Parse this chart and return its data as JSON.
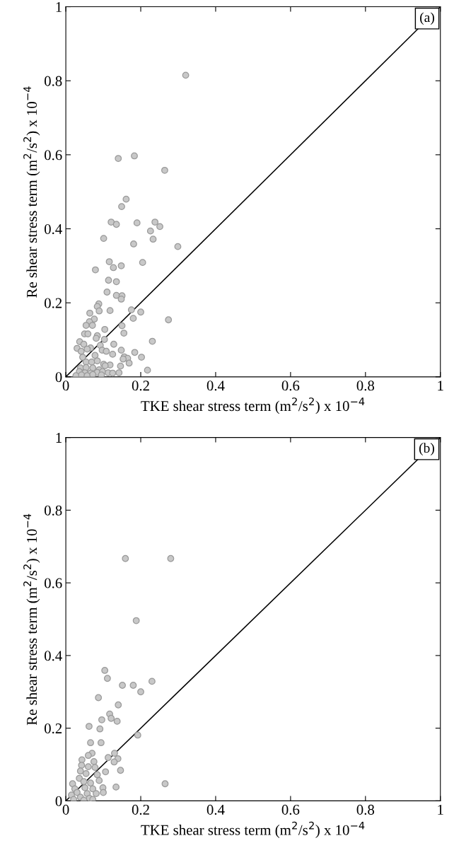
{
  "chart_data": [
    {
      "type": "scatter",
      "xlabel": "TKE shear stress term (m$^{2}$/s$^{2}$) x 10$^{−4}$",
      "ylabel": "Re shear stress term (m$^{2}$/s$^{2}$) x 10$^{−4}$",
      "annotations": [
        "(a)"
      ],
      "xlim": [
        0,
        1
      ],
      "ylim": [
        0,
        1
      ],
      "xticks": [
        0,
        0.2,
        0.4,
        0.6,
        0.8,
        1
      ],
      "yticks": [
        0,
        0.2,
        0.4,
        0.6,
        0.8,
        1
      ],
      "grid": false,
      "series": [
        {
          "marker": "circle",
          "color": "#c8c8c8",
          "x": [
            0.32,
            0.14,
            0.183,
            0.264,
            0.161,
            0.149,
            0.121,
            0.135,
            0.19,
            0.238,
            0.251,
            0.226,
            0.101,
            0.233,
            0.181,
            0.299,
            0.116,
            0.079,
            0.127,
            0.148,
            0.205,
            0.114,
            0.135,
            0.11,
            0.135,
            0.15,
            0.148,
            0.088,
            0.084,
            0.089,
            0.118,
            0.175,
            0.2,
            0.18,
            0.274,
            0.064,
            0.076,
            0.063,
            0.054,
            0.071,
            0.104,
            0.15,
            0.155,
            0.05,
            0.059,
            0.084,
            0.081,
            0.103,
            0.231,
            0.037,
            0.03,
            0.048,
            0.066,
            0.092,
            0.128,
            0.041,
            0.057,
            0.097,
            0.108,
            0.148,
            0.184,
            0.125,
            0.078,
            0.045,
            0.156,
            0.165,
            0.202,
            0.153,
            0.169,
            0.054,
            0.069,
            0.084,
            0.101,
            0.118,
            0.146,
            0.039,
            0.054,
            0.072,
            0.089,
            0.105,
            0.218,
            0.036,
            0.051,
            0.066,
            0.084,
            0.098,
            0.113,
            0.125,
            0.142,
            0.027,
            0.042,
            0.057,
            0.095,
            0.072
          ],
          "values": [
            0.815,
            0.59,
            0.597,
            0.558,
            0.48,
            0.46,
            0.418,
            0.412,
            0.416,
            0.418,
            0.406,
            0.394,
            0.374,
            0.372,
            0.359,
            0.352,
            0.311,
            0.289,
            0.295,
            0.3,
            0.309,
            0.261,
            0.257,
            0.229,
            0.22,
            0.219,
            0.21,
            0.197,
            0.19,
            0.178,
            0.179,
            0.181,
            0.175,
            0.158,
            0.154,
            0.172,
            0.156,
            0.149,
            0.139,
            0.139,
            0.128,
            0.138,
            0.118,
            0.116,
            0.116,
            0.111,
            0.104,
            0.101,
            0.096,
            0.095,
            0.077,
            0.088,
            0.078,
            0.085,
            0.088,
            0.069,
            0.075,
            0.072,
            0.069,
            0.072,
            0.066,
            0.061,
            0.058,
            0.053,
            0.054,
            0.05,
            0.053,
            0.048,
            0.037,
            0.04,
            0.04,
            0.043,
            0.034,
            0.032,
            0.029,
            0.024,
            0.025,
            0.024,
            0.019,
            0.03,
            0.018,
            0.014,
            0.011,
            0.01,
            0.012,
            0.014,
            0.011,
            0.01,
            0.011,
            0.003,
            0.005,
            0.003,
            0.005,
            0.006
          ]
        },
        {
          "type": "line",
          "color": "#000000",
          "x": [
            0,
            1
          ],
          "values": [
            0,
            1
          ]
        }
      ]
    },
    {
      "type": "scatter",
      "xlabel": "TKE shear stress term (m$^{2}$/s$^{2}$) x 10$^{−4}$",
      "ylabel": "Re shear stress term (m$^{2}$/s$^{2}$) x 10$^{−4}$",
      "annotations": [
        "(b)"
      ],
      "xlim": [
        0,
        1
      ],
      "ylim": [
        0,
        1
      ],
      "xticks": [
        0,
        0.2,
        0.4,
        0.6,
        0.8,
        1
      ],
      "yticks": [
        0,
        0.2,
        0.4,
        0.6,
        0.8,
        1
      ],
      "grid": false,
      "series": [
        {
          "marker": "circle",
          "color": "#c8c8c8",
          "x": [
            0.159,
            0.28,
            0.188,
            0.104,
            0.111,
            0.151,
            0.18,
            0.23,
            0.2,
            0.087,
            0.14,
            0.117,
            0.121,
            0.096,
            0.137,
            0.062,
            0.091,
            0.192,
            0.066,
            0.094,
            0.07,
            0.06,
            0.13,
            0.113,
            0.139,
            0.129,
            0.043,
            0.075,
            0.042,
            0.06,
            0.078,
            0.146,
            0.106,
            0.039,
            0.054,
            0.084,
            0.265,
            0.018,
            0.036,
            0.089,
            0.048,
            0.066,
            0.134,
            0.099,
            0.024,
            0.051,
            0.072,
            0.1,
            0.03,
            0.057,
            0.081,
            0.015,
            0.039,
            0.063,
            0.021,
            0.048,
            0.072
          ],
          "values": [
            0.667,
            0.667,
            0.496,
            0.359,
            0.337,
            0.318,
            0.318,
            0.329,
            0.3,
            0.284,
            0.264,
            0.239,
            0.227,
            0.223,
            0.219,
            0.205,
            0.198,
            0.181,
            0.16,
            0.16,
            0.131,
            0.125,
            0.131,
            0.119,
            0.116,
            0.107,
            0.113,
            0.108,
            0.098,
            0.094,
            0.092,
            0.084,
            0.08,
            0.082,
            0.075,
            0.072,
            0.047,
            0.047,
            0.062,
            0.056,
            0.053,
            0.049,
            0.038,
            0.036,
            0.033,
            0.036,
            0.033,
            0.023,
            0.023,
            0.02,
            0.02,
            0.016,
            0.01,
            0.007,
            0.004,
            0.002,
            0.004
          ]
        },
        {
          "type": "line",
          "color": "#000000",
          "x": [
            0,
            1
          ],
          "values": [
            0,
            1
          ]
        }
      ]
    }
  ]
}
